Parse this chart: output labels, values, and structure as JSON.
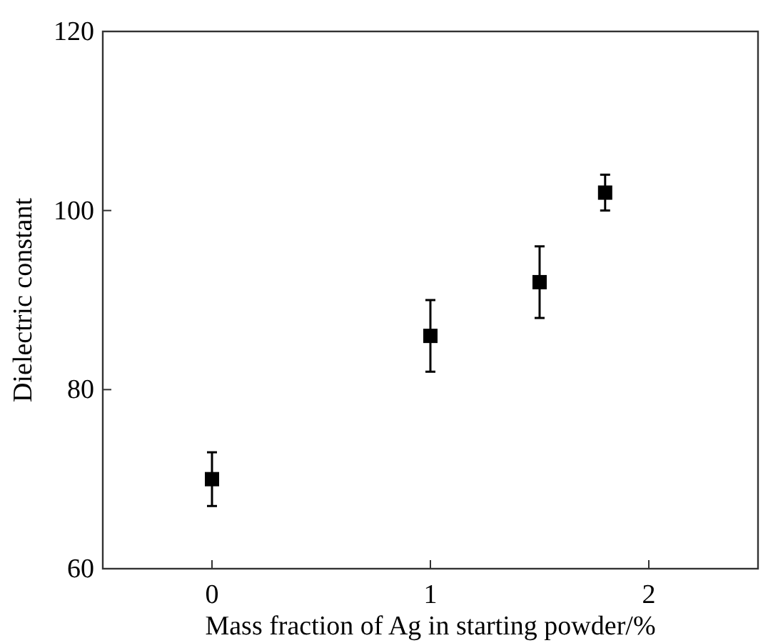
{
  "chart_data": {
    "type": "scatter",
    "xlabel": "Mass fraction of Ag in starting powder/%",
    "ylabel": "Dielectric constant",
    "x": [
      0,
      1,
      1.5,
      1.8
    ],
    "values": [
      70,
      86,
      92,
      102
    ],
    "errors": [
      3,
      4,
      4,
      2
    ],
    "color": "#000000",
    "marker": "square",
    "xlim": [
      -0.5,
      2.5
    ],
    "xticks": [
      0,
      1,
      2
    ],
    "ylim": [
      60,
      120
    ],
    "yticks": [
      60,
      80,
      100,
      120
    ],
    "grid": false
  }
}
